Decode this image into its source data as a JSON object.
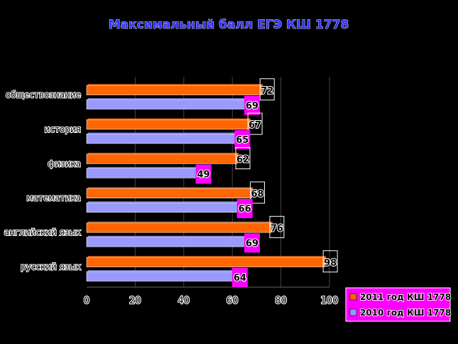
{
  "chart_data": {
    "type": "bar",
    "orientation": "horizontal",
    "title": "Максимальный балл ЕГЭ КШ 1778",
    "categories": [
      "обществознание",
      "история",
      "физика",
      "математика",
      "английский язык",
      "русский язык"
    ],
    "series": [
      {
        "name": "2011 год  КШ 1778",
        "values": [
          72,
          67,
          62,
          68,
          76,
          98
        ]
      },
      {
        "name": "2010 год  КШ 1778",
        "values": [
          69,
          65,
          49,
          66,
          69,
          64
        ]
      }
    ],
    "xlim": [
      0,
      100
    ],
    "xticks": [
      0,
      20,
      40,
      60,
      80,
      100
    ],
    "grid": "x-major",
    "legend": "bottom-right",
    "colors": {
      "background": "#000000",
      "plot_area": "#000000",
      "series_2011": "#FF6600",
      "series_2010": "#9999FF",
      "label_box": "#FF00FF",
      "title_text": "#3333FF",
      "axis_text": "#000000",
      "text_outline": "#FFFFFF",
      "legend_bg": "#FF00FF"
    }
  }
}
